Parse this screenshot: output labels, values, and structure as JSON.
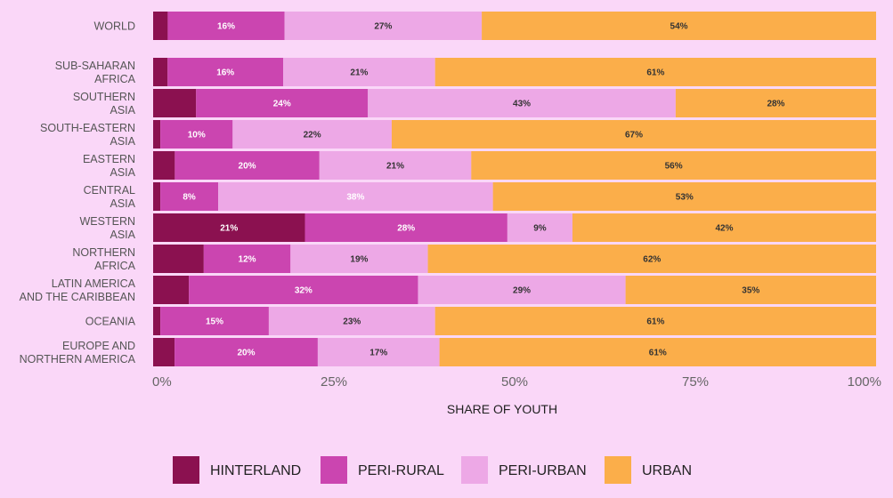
{
  "chart_data": {
    "type": "bar",
    "orientation": "horizontal",
    "stacked": true,
    "normalized": true,
    "xlabel": "SHARE OF YOUTH",
    "xlim": [
      0,
      100
    ],
    "x_ticks": [
      "0%",
      "25%",
      "50%",
      "75%",
      "100%"
    ],
    "x_tick_values": [
      0,
      25,
      50,
      75,
      100
    ],
    "legend_position": "bottom",
    "colors": {
      "hinterland": "#8b1150",
      "peri_rural": "#cb45b0",
      "peri_urban": "#eda8e6",
      "urban": "#fbae4a"
    },
    "series": [
      {
        "key": "hinterland",
        "name": "HINTERLAND"
      },
      {
        "key": "peri_rural",
        "name": "PERI-RURAL"
      },
      {
        "key": "peri_urban",
        "name": "PERI-URBAN"
      },
      {
        "key": "urban",
        "name": "URBAN"
      }
    ],
    "categories": [
      {
        "lines": [
          "WORLD"
        ],
        "values": [
          2,
          16,
          27,
          54
        ],
        "labels": [
          "",
          "16%",
          "27%",
          "54%"
        ]
      },
      {
        "lines": [
          "SUB-SAHARAN",
          "AFRICA"
        ],
        "values": [
          2,
          16,
          21,
          61
        ],
        "labels": [
          "",
          "16%",
          "21%",
          "61%"
        ]
      },
      {
        "lines": [
          "SOUTHERN",
          "ASIA"
        ],
        "values": [
          6,
          24,
          43,
          28
        ],
        "labels": [
          "",
          "24%",
          "43%",
          "28%"
        ]
      },
      {
        "lines": [
          "SOUTH-EASTERN",
          "ASIA"
        ],
        "values": [
          1,
          10,
          22,
          67
        ],
        "labels": [
          "",
          "10%",
          "22%",
          "67%"
        ]
      },
      {
        "lines": [
          "EASTERN",
          "ASIA"
        ],
        "values": [
          3,
          20,
          21,
          56
        ],
        "labels": [
          "",
          "20%",
          "21%",
          "56%"
        ]
      },
      {
        "lines": [
          "CENTRAL",
          "ASIA"
        ],
        "values": [
          1,
          8,
          38,
          53
        ],
        "labels": [
          "",
          "8%",
          "38%",
          "53%"
        ]
      },
      {
        "lines": [
          "WESTERN",
          "ASIA"
        ],
        "values": [
          21,
          28,
          9,
          42
        ],
        "labels": [
          "21%",
          "28%",
          "9%",
          "42%"
        ]
      },
      {
        "lines": [
          "NORTHERN",
          "AFRICA"
        ],
        "values": [
          7,
          12,
          19,
          62
        ],
        "labels": [
          "",
          "12%",
          "19%",
          "62%"
        ]
      },
      {
        "lines": [
          "LATIN AMERICA",
          "AND THE CARIBBEAN"
        ],
        "values": [
          5,
          32,
          29,
          35
        ],
        "labels": [
          "",
          "32%",
          "29%",
          "35%"
        ]
      },
      {
        "lines": [
          "OCEANIA"
        ],
        "values": [
          1,
          15,
          23,
          61
        ],
        "labels": [
          "",
          "15%",
          "23%",
          "61%"
        ]
      },
      {
        "lines": [
          "EUROPE AND",
          "NORTHERN AMERICA"
        ],
        "values": [
          3,
          20,
          17,
          61
        ],
        "labels": [
          "",
          "20%",
          "17%",
          "61%"
        ]
      }
    ]
  }
}
